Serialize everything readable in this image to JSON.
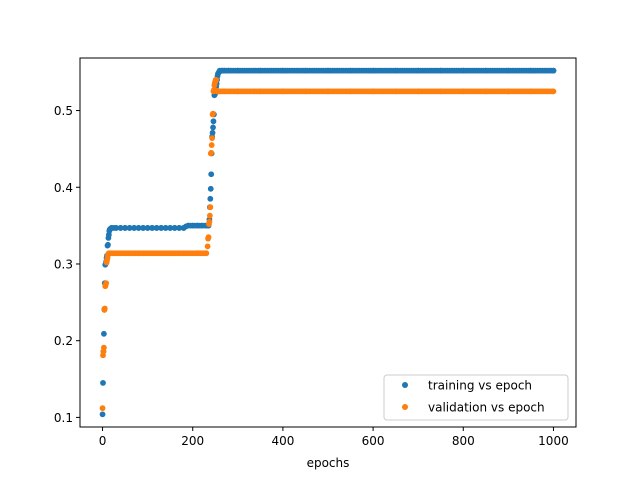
{
  "chart_data": {
    "type": "scatter",
    "title": "",
    "xlabel": "epochs",
    "ylabel": "",
    "xlim": [
      -50,
      1050
    ],
    "ylim": [
      0.0875,
      0.5685
    ],
    "xticks": [
      0,
      200,
      400,
      600,
      800,
      1000
    ],
    "yticks": [
      0.1,
      0.2,
      0.3,
      0.4,
      0.5
    ],
    "xtick_labels": [
      "0",
      "200",
      "400",
      "600",
      "800",
      "1000"
    ],
    "ytick_labels": [
      "0.1",
      "0.2",
      "0.3",
      "0.4",
      "0.5"
    ],
    "grid": false,
    "legend_position": "lower-right",
    "series": [
      {
        "name": "training vs epoch",
        "color": "#1f77b4",
        "points": [
          [
            0,
            0.104
          ],
          [
            1,
            0.145
          ],
          [
            2,
            0.186
          ],
          [
            3,
            0.209
          ],
          [
            4,
            0.241
          ],
          [
            5,
            0.275
          ],
          [
            6,
            0.299
          ],
          [
            7,
            0.3
          ],
          [
            8,
            0.303
          ],
          [
            9,
            0.308
          ],
          [
            10,
            0.311
          ],
          [
            11,
            0.324
          ],
          [
            12,
            0.325
          ],
          [
            13,
            0.334
          ],
          [
            14,
            0.338
          ],
          [
            15,
            0.343
          ],
          [
            16,
            0.345
          ],
          [
            18,
            0.346
          ],
          [
            20,
            0.347
          ],
          [
            25,
            0.347
          ],
          [
            30,
            0.347
          ],
          [
            40,
            0.347
          ],
          [
            50,
            0.347
          ],
          [
            60,
            0.347
          ],
          [
            70,
            0.347
          ],
          [
            80,
            0.347
          ],
          [
            90,
            0.347
          ],
          [
            100,
            0.347
          ],
          [
            110,
            0.347
          ],
          [
            120,
            0.347
          ],
          [
            130,
            0.347
          ],
          [
            140,
            0.347
          ],
          [
            150,
            0.347
          ],
          [
            160,
            0.347
          ],
          [
            170,
            0.347
          ],
          [
            180,
            0.347
          ],
          [
            185,
            0.349
          ],
          [
            190,
            0.35
          ],
          [
            200,
            0.35
          ],
          [
            210,
            0.35
          ],
          [
            220,
            0.35
          ],
          [
            230,
            0.35
          ],
          [
            235,
            0.35
          ],
          [
            237,
            0.358
          ],
          [
            238,
            0.374
          ],
          [
            239,
            0.385
          ],
          [
            240,
            0.398
          ],
          [
            241,
            0.417
          ],
          [
            242,
            0.444
          ],
          [
            243,
            0.466
          ],
          [
            244,
            0.471
          ],
          [
            245,
            0.478
          ],
          [
            246,
            0.486
          ],
          [
            247,
            0.495
          ],
          [
            248,
            0.52
          ],
          [
            249,
            0.521
          ],
          [
            250,
            0.522
          ],
          [
            251,
            0.527
          ],
          [
            252,
            0.531
          ],
          [
            253,
            0.535
          ],
          [
            254,
            0.54
          ],
          [
            255,
            0.545
          ],
          [
            256,
            0.548
          ],
          [
            258,
            0.55
          ],
          [
            260,
            0.551
          ],
          [
            265,
            0.552
          ],
          [
            270,
            0.552
          ],
          [
            280,
            0.552
          ],
          [
            300,
            0.552
          ],
          [
            350,
            0.552
          ],
          [
            400,
            0.552
          ],
          [
            450,
            0.552
          ],
          [
            500,
            0.552
          ],
          [
            550,
            0.552
          ],
          [
            600,
            0.552
          ],
          [
            650,
            0.552
          ],
          [
            700,
            0.552
          ],
          [
            750,
            0.552
          ],
          [
            800,
            0.552
          ],
          [
            850,
            0.552
          ],
          [
            900,
            0.552
          ],
          [
            950,
            0.552
          ],
          [
            1000,
            0.552
          ]
        ],
        "plateaus": [
          [
            20,
            180,
            10,
            0.347
          ],
          [
            190,
            235,
            5,
            0.35
          ],
          [
            260,
            1000,
            5,
            0.552
          ]
        ]
      },
      {
        "name": "validation vs epoch",
        "color": "#ff7f0e",
        "points": [
          [
            0,
            0.112
          ],
          [
            1,
            0.181
          ],
          [
            2,
            0.186
          ],
          [
            3,
            0.191
          ],
          [
            4,
            0.24
          ],
          [
            5,
            0.242
          ],
          [
            6,
            0.271
          ],
          [
            7,
            0.273
          ],
          [
            8,
            0.275
          ],
          [
            9,
            0.302
          ],
          [
            10,
            0.305
          ],
          [
            11,
            0.308
          ],
          [
            12,
            0.312
          ],
          [
            13,
            0.313
          ],
          [
            14,
            0.314
          ],
          [
            16,
            0.314
          ],
          [
            20,
            0.314
          ],
          [
            30,
            0.314
          ],
          [
            40,
            0.314
          ],
          [
            50,
            0.314
          ],
          [
            60,
            0.314
          ],
          [
            70,
            0.314
          ],
          [
            80,
            0.314
          ],
          [
            90,
            0.314
          ],
          [
            100,
            0.314
          ],
          [
            110,
            0.314
          ],
          [
            120,
            0.314
          ],
          [
            130,
            0.314
          ],
          [
            140,
            0.314
          ],
          [
            150,
            0.314
          ],
          [
            160,
            0.314
          ],
          [
            170,
            0.314
          ],
          [
            180,
            0.314
          ],
          [
            190,
            0.314
          ],
          [
            200,
            0.314
          ],
          [
            210,
            0.314
          ],
          [
            220,
            0.314
          ],
          [
            230,
            0.314
          ],
          [
            233,
            0.323
          ],
          [
            234,
            0.333
          ],
          [
            235,
            0.335
          ],
          [
            236,
            0.352
          ],
          [
            237,
            0.355
          ],
          [
            238,
            0.363
          ],
          [
            239,
            0.374
          ],
          [
            240,
            0.444
          ],
          [
            241,
            0.445
          ],
          [
            242,
            0.455
          ],
          [
            243,
            0.464
          ],
          [
            244,
            0.495
          ],
          [
            245,
            0.496
          ],
          [
            246,
            0.525
          ],
          [
            247,
            0.527
          ],
          [
            248,
            0.533
          ],
          [
            249,
            0.536
          ],
          [
            250,
            0.538
          ],
          [
            251,
            0.54
          ],
          [
            252,
            0.54
          ],
          [
            253,
            0.526
          ],
          [
            254,
            0.525
          ],
          [
            256,
            0.525
          ],
          [
            260,
            0.525
          ],
          [
            270,
            0.525
          ],
          [
            300,
            0.525
          ],
          [
            350,
            0.525
          ],
          [
            400,
            0.525
          ],
          [
            450,
            0.525
          ],
          [
            500,
            0.525
          ],
          [
            550,
            0.525
          ],
          [
            600,
            0.525
          ],
          [
            650,
            0.525
          ],
          [
            700,
            0.525
          ],
          [
            750,
            0.525
          ],
          [
            800,
            0.525
          ],
          [
            850,
            0.525
          ],
          [
            900,
            0.525
          ],
          [
            950,
            0.525
          ],
          [
            1000,
            0.525
          ]
        ],
        "plateaus": [
          [
            14,
            230,
            4,
            0.314
          ],
          [
            254,
            1000,
            4,
            0.525
          ]
        ]
      }
    ]
  }
}
